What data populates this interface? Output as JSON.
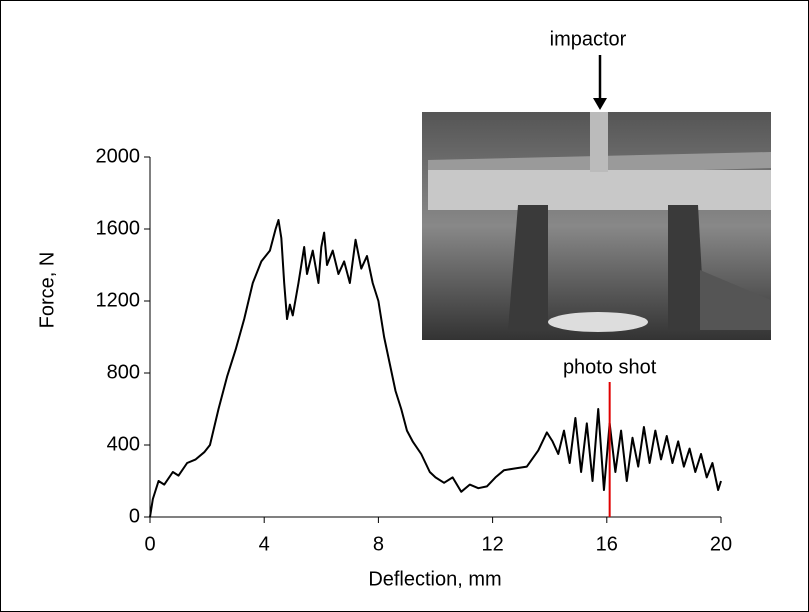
{
  "chart_data": {
    "type": "line",
    "x_label": "Deflection, mm",
    "y_label": "Force, N",
    "x": [
      0,
      0.1,
      0.3,
      0.5,
      0.8,
      1,
      1.3,
      1.6,
      1.9,
      2.1,
      2.4,
      2.7,
      3,
      3.3,
      3.6,
      3.9,
      4.2,
      4.4,
      4.5,
      4.6,
      4.7,
      4.8,
      4.9,
      5.0,
      5.2,
      5.4,
      5.5,
      5.7,
      5.9,
      6.0,
      6.1,
      6.2,
      6.4,
      6.6,
      6.8,
      7.0,
      7.2,
      7.4,
      7.6,
      7.8,
      8.0,
      8.2,
      8.4,
      8.6,
      8.8,
      9.0,
      9.2,
      9.5,
      9.8,
      10.0,
      10.3,
      10.6,
      10.9,
      11.2,
      11.5,
      11.8,
      12.1,
      12.4,
      12.8,
      13.2,
      13.6,
      13.9,
      14.1,
      14.3,
      14.5,
      14.7,
      14.9,
      15.1,
      15.3,
      15.5,
      15.7,
      15.9,
      16.1,
      16.3,
      16.5,
      16.7,
      16.9,
      17.1,
      17.3,
      17.5,
      17.7,
      17.9,
      18.1,
      18.3,
      18.5,
      18.7,
      18.9,
      19.1,
      19.3,
      19.5,
      19.7,
      19.9,
      20
    ],
    "series": [
      {
        "color": "#000000",
        "values": [
          0,
          100,
          200,
          180,
          250,
          230,
          300,
          320,
          360,
          400,
          600,
          780,
          930,
          1100,
          1300,
          1420,
          1480,
          1600,
          1650,
          1550,
          1300,
          1100,
          1180,
          1120,
          1300,
          1500,
          1350,
          1480,
          1300,
          1500,
          1580,
          1400,
          1480,
          1350,
          1420,
          1300,
          1540,
          1380,
          1450,
          1300,
          1200,
          1000,
          850,
          700,
          600,
          480,
          420,
          350,
          250,
          220,
          190,
          220,
          140,
          180,
          160,
          170,
          220,
          260,
          270,
          280,
          370,
          470,
          420,
          350,
          480,
          300,
          550,
          250,
          520,
          200,
          600,
          150,
          520,
          250,
          480,
          200,
          440,
          280,
          500,
          300,
          480,
          320,
          450,
          300,
          420,
          280,
          380,
          250,
          350,
          220,
          300,
          150,
          200
        ]
      }
    ],
    "xlim": [
      0,
      20
    ],
    "xticks": [
      0,
      4,
      8,
      12,
      16,
      20
    ],
    "ylim": [
      0,
      2000
    ],
    "yticks": [
      0,
      400,
      800,
      1200,
      1600,
      2000
    ],
    "marker": {
      "x": 16.1,
      "label": "photo shot",
      "color": "#e00000"
    },
    "photo_label": "impactor"
  }
}
